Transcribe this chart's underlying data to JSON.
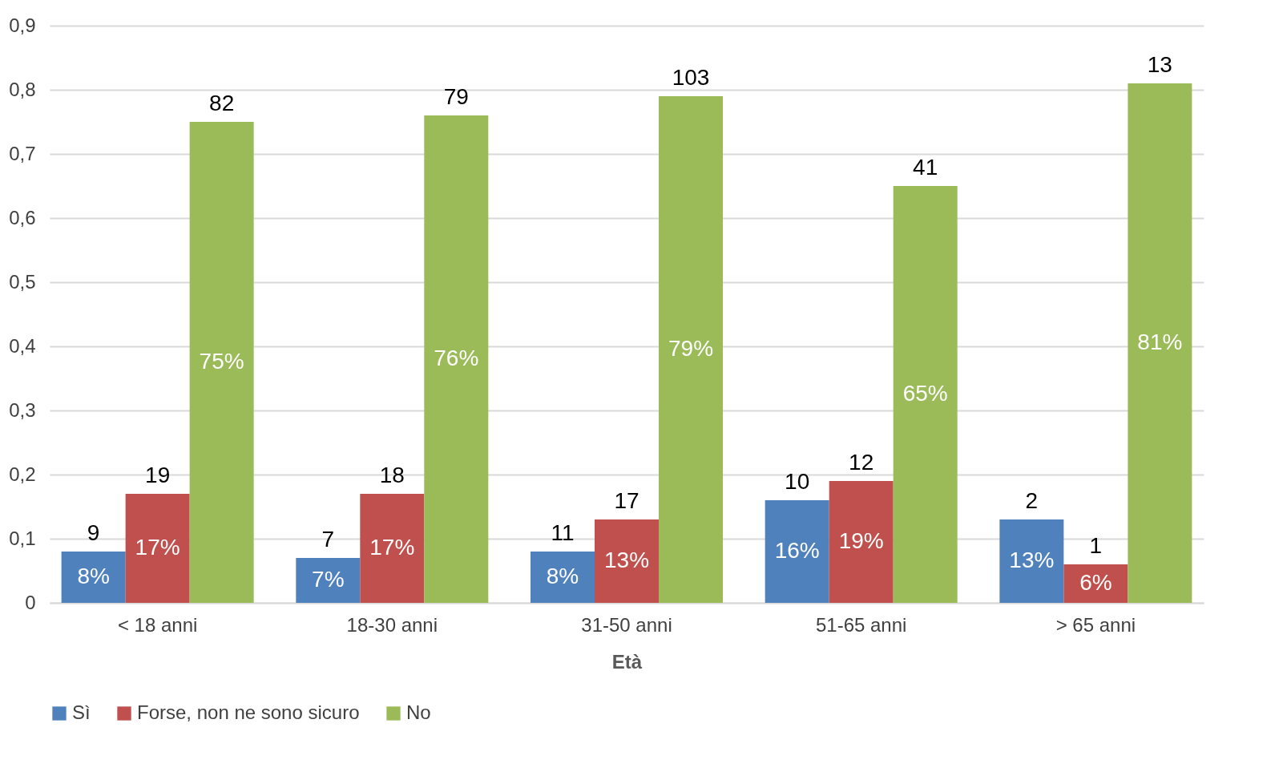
{
  "chart_data": {
    "type": "bar",
    "xlabel": "Età",
    "categories": [
      "< 18 anni",
      "18-30 anni",
      "31-50 anni",
      "51-65 anni",
      "> 65 anni"
    ],
    "series": [
      {
        "name": "Sì",
        "color": "#4f81bd",
        "values": [
          0.08,
          0.07,
          0.08,
          0.16,
          0.13
        ],
        "value_labels": [
          "8%",
          "7%",
          "8%",
          "16%",
          "13%"
        ]
      },
      {
        "name": "Forse, non ne sono sicuro",
        "color": "#c0504d",
        "values": [
          0.17,
          0.17,
          0.13,
          0.19,
          0.06
        ],
        "value_labels": [
          "17%",
          "17%",
          "13%",
          "19%",
          "6%"
        ]
      },
      {
        "name": "No",
        "color": "#9bbb59",
        "values": [
          0.75,
          0.76,
          0.79,
          0.65,
          0.81
        ],
        "value_labels": [
          "75%",
          "76%",
          "79%",
          "65%",
          "81%"
        ]
      }
    ],
    "annotations": [
      "9",
      "19",
      "82",
      "7",
      "18",
      "79",
      "11",
      "17",
      "103",
      "10",
      "12",
      "41",
      "2",
      "1",
      "13"
    ],
    "ylim": [
      0,
      0.9
    ],
    "yticks": [
      {
        "value": 0,
        "label": "0"
      },
      {
        "value": 0.1,
        "label": "0,1"
      },
      {
        "value": 0.2,
        "label": "0,2"
      },
      {
        "value": 0.3,
        "label": "0,3"
      },
      {
        "value": 0.4,
        "label": "0,4"
      },
      {
        "value": 0.5,
        "label": "0,5"
      },
      {
        "value": 0.6,
        "label": "0,6"
      },
      {
        "value": 0.7,
        "label": "0,7"
      },
      {
        "value": 0.8,
        "label": "0,8"
      },
      {
        "value": 0.9,
        "label": "0,9"
      }
    ],
    "grid": "y",
    "legend": "bottom"
  }
}
